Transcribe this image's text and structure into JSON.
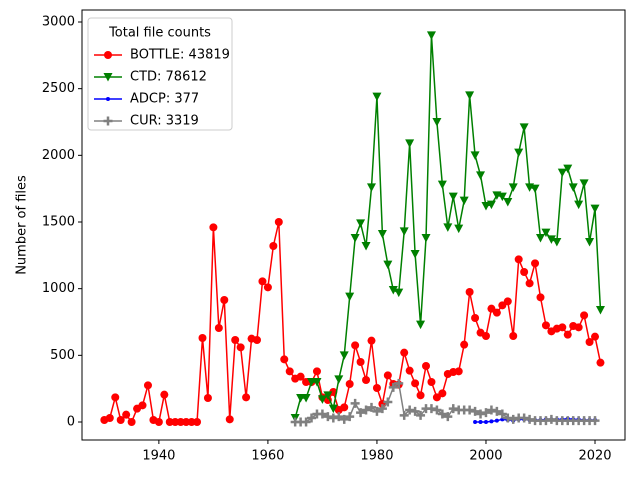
{
  "chart_data": {
    "type": "line",
    "ylabel": "Number of files",
    "legend_title": "Total file counts",
    "legend": "upper left",
    "xlim": [
      1925.9,
      2025.5
    ],
    "ylim": [
      -135,
      3090
    ],
    "xticks": [
      1940,
      1960,
      1980,
      2000,
      2020
    ],
    "yticks": [
      0,
      500,
      1000,
      1500,
      2000,
      2500,
      3000
    ],
    "series": [
      {
        "name": "BOTTLE: 43819",
        "color": "#ff0000",
        "marker": "circle",
        "x": [
          1930,
          1931,
          1932,
          1933,
          1934,
          1935,
          1936,
          1937,
          1938,
          1939,
          1940,
          1941,
          1942,
          1943,
          1944,
          1945,
          1946,
          1947,
          1948,
          1949,
          1950,
          1951,
          1952,
          1953,
          1954,
          1955,
          1956,
          1957,
          1958,
          1959,
          1960,
          1961,
          1962,
          1963,
          1964,
          1965,
          1966,
          1967,
          1968,
          1969,
          1970,
          1971,
          1972,
          1973,
          1974,
          1975,
          1976,
          1977,
          1978,
          1979,
          1980,
          1981,
          1982,
          1983,
          1984,
          1985,
          1986,
          1987,
          1988,
          1989,
          1990,
          1991,
          1992,
          1993,
          1994,
          1995,
          1996,
          1997,
          1998,
          1999,
          2000,
          2001,
          2002,
          2003,
          2004,
          2005,
          2006,
          2007,
          2008,
          2009,
          2010,
          2011,
          2012,
          2013,
          2014,
          2015,
          2016,
          2017,
          2018,
          2019,
          2020,
          2021
        ],
        "values": [
          15,
          30,
          185,
          15,
          55,
          0,
          100,
          125,
          275,
          15,
          0,
          205,
          0,
          0,
          0,
          0,
          0,
          0,
          630,
          180,
          1460,
          705,
          915,
          20,
          615,
          560,
          185,
          625,
          615,
          1055,
          1010,
          1320,
          1500,
          470,
          380,
          325,
          340,
          300,
          300,
          380,
          185,
          165,
          225,
          90,
          110,
          285,
          575,
          450,
          315,
          610,
          255,
          135,
          350,
          285,
          280,
          520,
          385,
          290,
          200,
          420,
          300,
          185,
          215,
          360,
          375,
          380,
          580,
          975,
          780,
          670,
          645,
          850,
          820,
          875,
          905,
          645,
          1220,
          1125,
          1040,
          1190,
          935,
          725,
          680,
          700,
          710,
          655,
          720,
          710,
          800,
          600,
          640,
          445
        ]
      },
      {
        "name": "CTD: 78612",
        "color": "#008000",
        "marker": "triangle-down",
        "x": [
          1965,
          1966,
          1967,
          1968,
          1969,
          1970,
          1971,
          1972,
          1973,
          1974,
          1975,
          1976,
          1977,
          1978,
          1979,
          1980,
          1981,
          1982,
          1983,
          1984,
          1985,
          1986,
          1987,
          1988,
          1989,
          1990,
          1991,
          1992,
          1993,
          1994,
          1995,
          1996,
          1997,
          1998,
          1999,
          2000,
          2001,
          2002,
          2003,
          2004,
          2005,
          2006,
          2007,
          2008,
          2009,
          2010,
          2011,
          2012,
          2013,
          2014,
          2015,
          2016,
          2017,
          2018,
          2019,
          2020,
          2021
        ],
        "values": [
          30,
          180,
          180,
          300,
          300,
          170,
          200,
          100,
          320,
          500,
          940,
          1380,
          1490,
          1320,
          1760,
          2440,
          1410,
          1180,
          990,
          970,
          1430,
          2090,
          1260,
          730,
          1380,
          2900,
          2250,
          1780,
          1460,
          1690,
          1450,
          1660,
          2450,
          2000,
          1850,
          1620,
          1630,
          1700,
          1690,
          1650,
          1760,
          2020,
          2210,
          1760,
          1750,
          1380,
          1420,
          1370,
          1350,
          1870,
          1900,
          1760,
          1630,
          1790,
          1350,
          1600,
          840
        ]
      },
      {
        "name": "ADCP: 377",
        "color": "#0000ff",
        "marker": "dot",
        "x": [
          1998,
          1999,
          2000,
          2001,
          2002,
          2003,
          2004,
          2005,
          2006,
          2007,
          2008,
          2009,
          2010,
          2011,
          2012,
          2013,
          2014,
          2015,
          2016,
          2017,
          2018,
          2019,
          2020
        ],
        "values": [
          0,
          0,
          0,
          5,
          10,
          20,
          15,
          10,
          20,
          20,
          15,
          15,
          15,
          20,
          20,
          20,
          20,
          25,
          20,
          20,
          15,
          15,
          15
        ]
      },
      {
        "name": "CUR: 3319",
        "color": "#808080",
        "marker": "plus",
        "x": [
          1965,
          1966,
          1967,
          1968,
          1969,
          1970,
          1971,
          1972,
          1973,
          1974,
          1975,
          1976,
          1977,
          1978,
          1979,
          1980,
          1981,
          1982,
          1983,
          1984,
          1985,
          1986,
          1987,
          1988,
          1989,
          1990,
          1991,
          1992,
          1993,
          1994,
          1995,
          1996,
          1997,
          1998,
          1999,
          2000,
          2001,
          2002,
          2003,
          2004,
          2005,
          2006,
          2007,
          2008,
          2009,
          2010,
          2011,
          2012,
          2013,
          2014,
          2015,
          2016,
          2017,
          2018,
          2019,
          2020
        ],
        "values": [
          0,
          0,
          0,
          30,
          60,
          60,
          40,
          30,
          40,
          20,
          40,
          140,
          70,
          90,
          110,
          80,
          100,
          150,
          260,
          290,
          50,
          90,
          80,
          50,
          100,
          100,
          90,
          60,
          40,
          100,
          90,
          90,
          90,
          80,
          60,
          70,
          90,
          80,
          60,
          30,
          20,
          30,
          30,
          20,
          10,
          10,
          10,
          20,
          10,
          10,
          10,
          10,
          10,
          10,
          10,
          10
        ]
      }
    ]
  }
}
